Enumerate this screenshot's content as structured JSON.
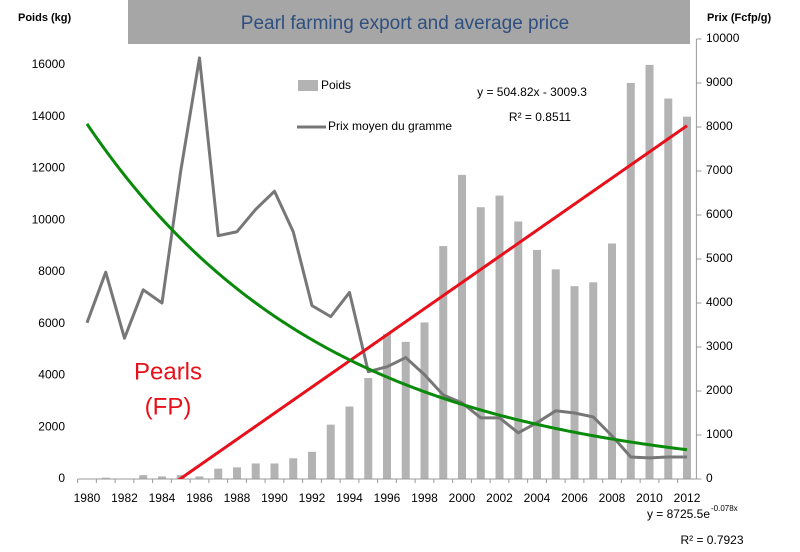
{
  "chart_data": {
    "type": "bar_line",
    "title": "Pearl farming export and average price",
    "y_label": "Poids (kg)",
    "y2_label": "Prix (Fcfp/g)",
    "categories": [
      "1980",
      null,
      "1982",
      null,
      "1984",
      null,
      "1986",
      null,
      "1988",
      null,
      "1990",
      null,
      "1992",
      null,
      "1994",
      null,
      "1996",
      null,
      "1998",
      null,
      "2000",
      null,
      "2002",
      null,
      "2004",
      null,
      "2006",
      null,
      "2008",
      null,
      "2010",
      null,
      "2012"
    ],
    "series": [
      {
        "name": "Poids",
        "type": "bar",
        "axis": "y",
        "color": "#b3b3b3",
        "values": [
          0,
          50,
          0,
          150,
          100,
          150,
          100,
          400,
          450,
          600,
          600,
          800,
          1050,
          2100,
          2800,
          3900,
          5600,
          5300,
          6050,
          9000,
          11750,
          10500,
          10950,
          9950,
          8850,
          8100,
          7450,
          7600,
          9100,
          15300,
          16000,
          14700,
          14000
        ]
      },
      {
        "name": "Prix moyen du gramme",
        "type": "line",
        "axis": "y2",
        "color": "#777777",
        "values": [
          3550,
          4700,
          3200,
          4300,
          4000,
          7000,
          9570,
          5530,
          5620,
          6130,
          6540,
          5620,
          3940,
          3690,
          4240,
          2440,
          2550,
          2760,
          2370,
          1910,
          1730,
          1390,
          1390,
          1050,
          1280,
          1550,
          1500,
          1410,
          980,
          500,
          480,
          500,
          500
        ]
      }
    ],
    "trendlines": [
      {
        "kind": "linear",
        "axis": "y",
        "color": "#e8101a",
        "slope": 504.82,
        "intercept": -3009.3,
        "equation": "y = 504.82x - 3009.3",
        "r2": "R² = 0.8511"
      },
      {
        "kind": "exponential",
        "axis": "y2",
        "color": "#0a8a0a",
        "coefficient": 8725.5,
        "rate": -0.078,
        "equation": "y = 8725.5e",
        "exponent": "-0.078x",
        "r2": "R² = 0.7923"
      }
    ],
    "annotation": [
      "Pearls",
      "(FP)"
    ],
    "ylim": [
      0,
      17000
    ],
    "yticks": [
      0,
      2000,
      4000,
      6000,
      8000,
      10000,
      12000,
      14000,
      16000
    ],
    "y2lim": [
      0,
      10000
    ],
    "y2ticks": [
      0,
      1000,
      2000,
      3000,
      4000,
      5000,
      6000,
      7000,
      8000,
      9000,
      10000
    ]
  }
}
